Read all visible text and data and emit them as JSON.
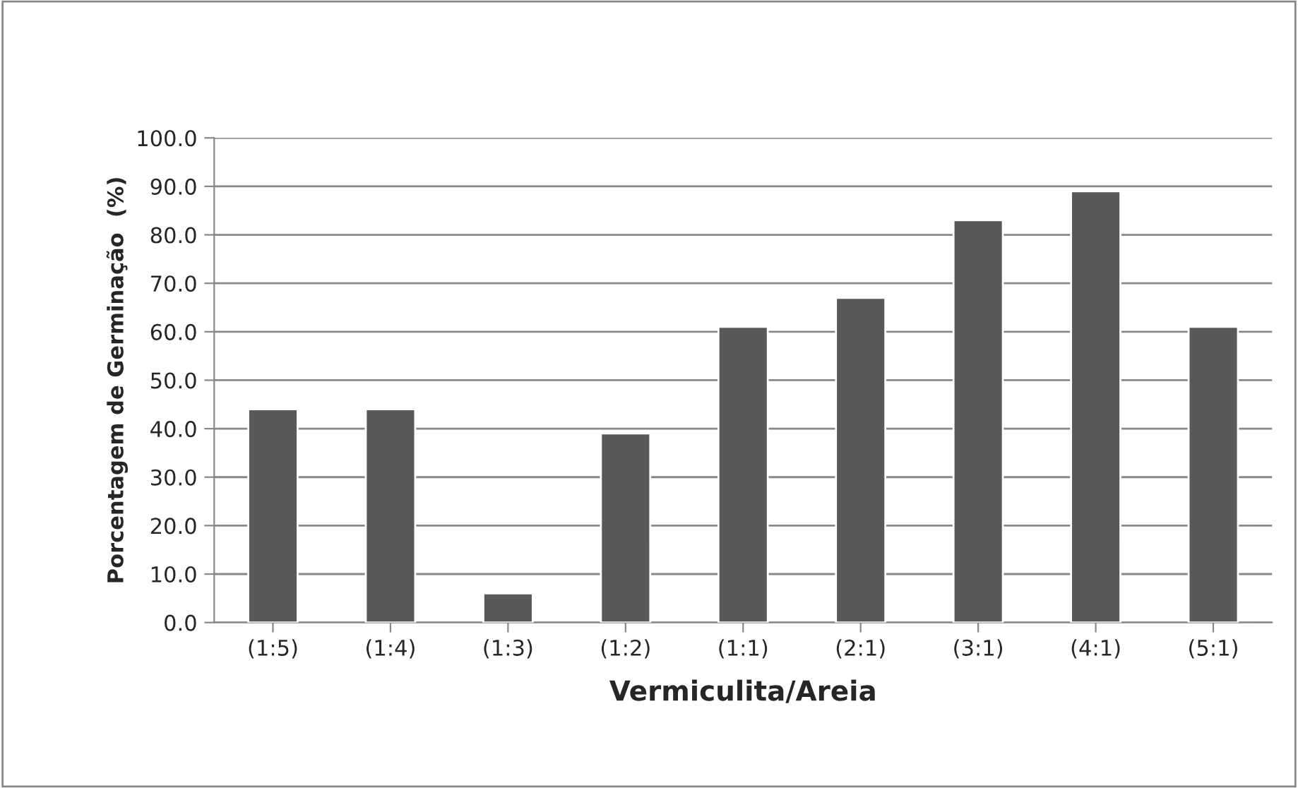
{
  "chart_data": {
    "type": "bar",
    "categories": [
      "(1:5)",
      "(1:4)",
      "(1:3)",
      "(1:2)",
      "(1:1)",
      "(2:1)",
      "(3:1)",
      "(4:1)",
      "(5:1)"
    ],
    "values": [
      44,
      44,
      6,
      39,
      61,
      67,
      83,
      89,
      61
    ],
    "color": "#595959",
    "xlabel": "Vermiculita/Areia",
    "ylabel": "Porcentagem de Germinação  (%)",
    "ylim": [
      0,
      100
    ],
    "yticks": [
      {
        "value": 0,
        "label": "0.0"
      },
      {
        "value": 10,
        "label": "10.0"
      },
      {
        "value": 20,
        "label": "20.0"
      },
      {
        "value": 30,
        "label": "30.0"
      },
      {
        "value": 40,
        "label": "40.0"
      },
      {
        "value": 50,
        "label": "50.0"
      },
      {
        "value": 60,
        "label": "60.0"
      },
      {
        "value": 70,
        "label": "70.0"
      },
      {
        "value": 80,
        "label": "80.0"
      },
      {
        "value": 90,
        "label": "90.0"
      },
      {
        "value": 100,
        "label": "100.0"
      }
    ],
    "grid": "y"
  }
}
